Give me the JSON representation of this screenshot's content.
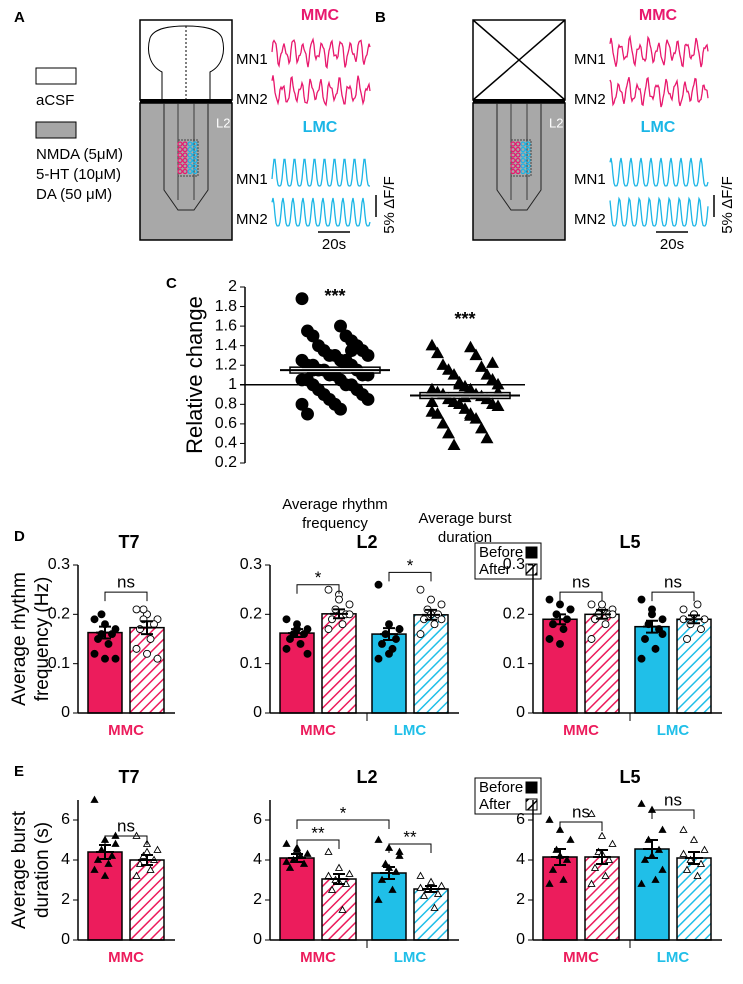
{
  "diagrams": [
    {
      "label": "A",
      "legend": [
        {
          "label": [
            "aCSF"
          ],
          "fill": "#ffffff"
        },
        {
          "label": [
            "NMDA (5μM)",
            "5-HT (10μM)",
            "DA (50 μM)"
          ],
          "fill": "#a6a6a6"
        }
      ],
      "region": "L2",
      "groups": [
        {
          "title": "MMC",
          "color": "#e8186d",
          "traces": [
            "MN1",
            "MN2"
          ]
        },
        {
          "title": "LMC",
          "color": "#1bb6e6",
          "traces": [
            "MN1",
            "MN2"
          ]
        }
      ],
      "time_scale": "20s",
      "amp_scale": "5% ΔF/F"
    },
    {
      "label": "B",
      "region": "L2",
      "groups": [
        {
          "title": "MMC",
          "color": "#e8186d",
          "traces": [
            "MN1",
            "MN2"
          ]
        },
        {
          "title": "LMC",
          "color": "#1bb6e6",
          "traces": [
            "MN1",
            "MN2"
          ]
        }
      ],
      "time_scale": "20s",
      "amp_scale": "5% ΔF/F"
    }
  ],
  "chart_data": [
    {
      "type": "scatter",
      "panel_label": "C",
      "ylabel": "Relative change",
      "ylim": [
        0.2,
        2
      ],
      "yticks": [
        0.2,
        0.4,
        0.6,
        0.8,
        1,
        1.2,
        1.4,
        1.6,
        1.8,
        2
      ],
      "refline": 1,
      "categories": [
        [
          "Average rhythm",
          "frequency"
        ],
        [
          "Average burst",
          "duration"
        ]
      ],
      "groups": [
        {
          "marker": "circle",
          "annotation": "***",
          "mean": 1.15,
          "sem": 0.03,
          "values": [
            1.88,
            1.6,
            1.55,
            1.5,
            1.5,
            1.45,
            1.4,
            1.4,
            1.35,
            1.35,
            1.3,
            1.3,
            1.3,
            1.25,
            1.25,
            1.2,
            1.2,
            1.2,
            1.2,
            1.15,
            1.15,
            1.15,
            1.1,
            1.1,
            1.1,
            1.1,
            1.05,
            1.05,
            1.05,
            1.0,
            1.0,
            1.0,
            0.95,
            0.95,
            0.9,
            0.9,
            0.85,
            0.85,
            0.8,
            0.8,
            0.75,
            0.7,
            1.25,
            1.15,
            1.35
          ]
        },
        {
          "marker": "triangle",
          "annotation": "***",
          "mean": 0.89,
          "sem": 0.03,
          "values": [
            1.4,
            1.38,
            1.32,
            1.3,
            1.2,
            1.18,
            1.15,
            1.1,
            1.1,
            1.05,
            1.0,
            1.0,
            0.98,
            0.95,
            0.95,
            0.92,
            0.9,
            0.9,
            0.88,
            0.85,
            0.85,
            0.82,
            0.8,
            0.8,
            0.78,
            0.75,
            0.72,
            0.7,
            0.7,
            0.65,
            0.6,
            0.55,
            0.5,
            0.45,
            0.38,
            1.22,
            1.02,
            0.92,
            0.87,
            0.82,
            0.68
          ]
        }
      ]
    },
    {
      "type": "bar",
      "panel_label": "D",
      "title": "T7",
      "ylabel": [
        "Average rhythm",
        "frequency (Hz)"
      ],
      "ylim": [
        0,
        0.3
      ],
      "yticks": [
        0,
        0.1,
        0.2,
        0.3
      ],
      "marker": "circle",
      "categories": [
        "MMC"
      ],
      "category_colors": [
        "#ec1c5c"
      ],
      "series": [
        {
          "name": "Before",
          "values": [
            0.163
          ],
          "errors": [
            0.012
          ],
          "points": [
            [
              0.19,
              0.18,
              0.17,
              0.16,
              0.16,
              0.15,
              0.14,
              0.12,
              0.11,
              0.11,
              0.2
            ]
          ]
        },
        {
          "name": "After",
          "values": [
            0.173
          ],
          "errors": [
            0.013
          ],
          "points": [
            [
              0.21,
              0.2,
              0.19,
              0.19,
              0.18,
              0.17,
              0.15,
              0.13,
              0.12,
              0.11,
              0.21
            ]
          ]
        }
      ],
      "brackets": [
        {
          "label": "ns",
          "y": 0.245,
          "from": [
            0,
            0
          ],
          "to": [
            1,
            0
          ]
        }
      ]
    },
    {
      "type": "bar",
      "title": "L2",
      "ylim": [
        0,
        0.3
      ],
      "yticks": [
        0,
        0.1,
        0.2,
        0.3
      ],
      "marker": "circle",
      "legend": "upper right",
      "categories": [
        "MMC",
        "LMC"
      ],
      "category_colors": [
        "#ec1c5c",
        "#20bfe8"
      ],
      "series": [
        {
          "name": "Before",
          "values": [
            0.162,
            0.16
          ],
          "errors": [
            0.008,
            0.012
          ],
          "points": [
            [
              0.19,
              0.18,
              0.17,
              0.16,
              0.16,
              0.15,
              0.14,
              0.13,
              0.17,
              0.12
            ],
            [
              0.26,
              0.18,
              0.17,
              0.16,
              0.15,
              0.14,
              0.13,
              0.11,
              0.12,
              0.17
            ]
          ]
        },
        {
          "name": "After",
          "values": [
            0.201,
            0.199
          ],
          "errors": [
            0.009,
            0.01
          ],
          "points": [
            [
              0.25,
              0.24,
              0.22,
              0.21,
              0.2,
              0.19,
              0.18,
              0.17,
              0.23,
              0.2
            ],
            [
              0.25,
              0.23,
              0.22,
              0.21,
              0.2,
              0.19,
              0.18,
              0.16,
              0.2,
              0.19
            ]
          ]
        }
      ],
      "brackets": [
        {
          "label": "*",
          "y": 0.26,
          "from": [
            0,
            0
          ],
          "to": [
            1,
            0
          ]
        },
        {
          "label": "*",
          "y": 0.285,
          "from": [
            0,
            1
          ],
          "to": [
            1,
            1
          ]
        }
      ]
    },
    {
      "type": "bar",
      "title": "L5",
      "ylim": [
        0,
        0.3
      ],
      "yticks": [
        0,
        0.1,
        0.2,
        0.3
      ],
      "marker": "circle",
      "categories": [
        "MMC",
        "LMC"
      ],
      "category_colors": [
        "#ec1c5c",
        "#20bfe8"
      ],
      "series": [
        {
          "name": "Before",
          "values": [
            0.19,
            0.175
          ],
          "errors": [
            0.01,
            0.012
          ],
          "points": [
            [
              0.23,
              0.22,
              0.21,
              0.2,
              0.19,
              0.18,
              0.17,
              0.15,
              0.14,
              0.21
            ],
            [
              0.23,
              0.21,
              0.19,
              0.18,
              0.17,
              0.15,
              0.13,
              0.11,
              0.2,
              0.16
            ]
          ]
        },
        {
          "name": "After",
          "values": [
            0.2,
            0.19
          ],
          "errors": [
            0.009,
            0.008
          ],
          "points": [
            [
              0.22,
              0.21,
              0.21,
              0.2,
              0.2,
              0.19,
              0.18,
              0.15,
              0.22,
              0.2
            ],
            [
              0.21,
              0.2,
              0.19,
              0.18,
              0.17,
              0.15,
              0.22,
              0.19,
              0.2
            ]
          ]
        }
      ],
      "brackets": [
        {
          "label": "ns",
          "y": 0.245,
          "from": [
            0,
            0
          ],
          "to": [
            1,
            0
          ]
        },
        {
          "label": "ns",
          "y": 0.245,
          "from": [
            0,
            1
          ],
          "to": [
            1,
            1
          ]
        }
      ]
    },
    {
      "type": "bar",
      "panel_label": "E",
      "title": "T7",
      "ylabel": [
        "Average burst",
        "duration (s)"
      ],
      "ylim": [
        0,
        7
      ],
      "yticks": [
        0,
        2,
        4,
        6
      ],
      "marker": "triangle",
      "categories": [
        "MMC"
      ],
      "category_colors": [
        "#ec1c5c"
      ],
      "series": [
        {
          "name": "Before",
          "values": [
            4.4
          ],
          "errors": [
            0.35
          ],
          "points": [
            [
              7.0,
              5.0,
              4.8,
              4.5,
              4.2,
              4.0,
              3.8,
              3.5,
              3.2,
              5.2
            ]
          ]
        },
        {
          "name": "After",
          "values": [
            4.0
          ],
          "errors": [
            0.25
          ],
          "points": [
            [
              5.2,
              4.8,
              4.5,
              4.2,
              4.0,
              3.8,
              3.5,
              3.2,
              4.4
            ]
          ]
        }
      ],
      "brackets": [
        {
          "label": "ns",
          "y": 5.2,
          "from": [
            0,
            0
          ],
          "to": [
            1,
            0
          ]
        }
      ]
    },
    {
      "type": "bar",
      "title": "L2",
      "ylim": [
        0,
        7
      ],
      "yticks": [
        0,
        2,
        4,
        6
      ],
      "marker": "triangle",
      "legend": "upper right",
      "categories": [
        "MMC",
        "LMC"
      ],
      "category_colors": [
        "#ec1c5c",
        "#20bfe8"
      ],
      "series": [
        {
          "name": "Before",
          "values": [
            4.1,
            3.35
          ],
          "errors": [
            0.2,
            0.3
          ],
          "points": [
            [
              4.8,
              4.5,
              4.3,
              4.0,
              3.8,
              3.6,
              4.2,
              3.9,
              4.6
            ],
            [
              5.0,
              4.6,
              4.2,
              3.8,
              3.4,
              3.0,
              2.5,
              2.0,
              3.6,
              4.4
            ]
          ]
        },
        {
          "name": "After",
          "values": [
            3.05,
            2.55
          ],
          "errors": [
            0.25,
            0.15
          ],
          "points": [
            [
              4.4,
              3.6,
              3.3,
              3.0,
              2.8,
              2.5,
              1.5,
              3.2,
              2.9
            ],
            [
              3.2,
              2.9,
              2.7,
              2.5,
              2.3,
              2.2,
              1.6,
              2.6
            ]
          ]
        }
      ],
      "brackets": [
        {
          "label": "**",
          "y": 5.0,
          "from": [
            0,
            0
          ],
          "to": [
            1,
            0
          ]
        },
        {
          "label": "*",
          "y": 6.0,
          "from": [
            0,
            0
          ],
          "to": [
            0,
            1
          ]
        },
        {
          "label": "**",
          "y": 4.8,
          "from": [
            0,
            1
          ],
          "to": [
            1,
            1
          ]
        }
      ]
    },
    {
      "type": "bar",
      "title": "L5",
      "ylim": [
        0,
        7
      ],
      "yticks": [
        0,
        2,
        4,
        6
      ],
      "marker": "triangle",
      "categories": [
        "MMC",
        "LMC"
      ],
      "category_colors": [
        "#ec1c5c",
        "#20bfe8"
      ],
      "series": [
        {
          "name": "Before",
          "values": [
            4.15,
            4.55
          ],
          "errors": [
            0.4,
            0.45
          ],
          "points": [
            [
              6.0,
              5.5,
              5.0,
              4.5,
              4.0,
              3.5,
              3.0,
              2.8,
              4.2
            ],
            [
              6.8,
              6.5,
              5.5,
              5.0,
              4.5,
              4.0,
              3.0,
              2.8,
              4.2,
              3.5
            ]
          ]
        },
        {
          "name": "After",
          "values": [
            4.15,
            4.1
          ],
          "errors": [
            0.35,
            0.3
          ],
          "points": [
            [
              6.3,
              5.2,
              4.8,
              4.4,
              4.0,
              3.6,
              3.2,
              2.8,
              4.3
            ],
            [
              5.5,
              5.0,
              4.5,
              4.0,
              3.8,
              3.5,
              3.2,
              4.3
            ]
          ]
        }
      ],
      "brackets": [
        {
          "label": "ns",
          "y": 5.9,
          "from": [
            0,
            0
          ],
          "to": [
            1,
            0
          ]
        },
        {
          "label": "ns",
          "y": 6.5,
          "from": [
            0,
            1
          ],
          "to": [
            1,
            1
          ]
        }
      ]
    }
  ]
}
